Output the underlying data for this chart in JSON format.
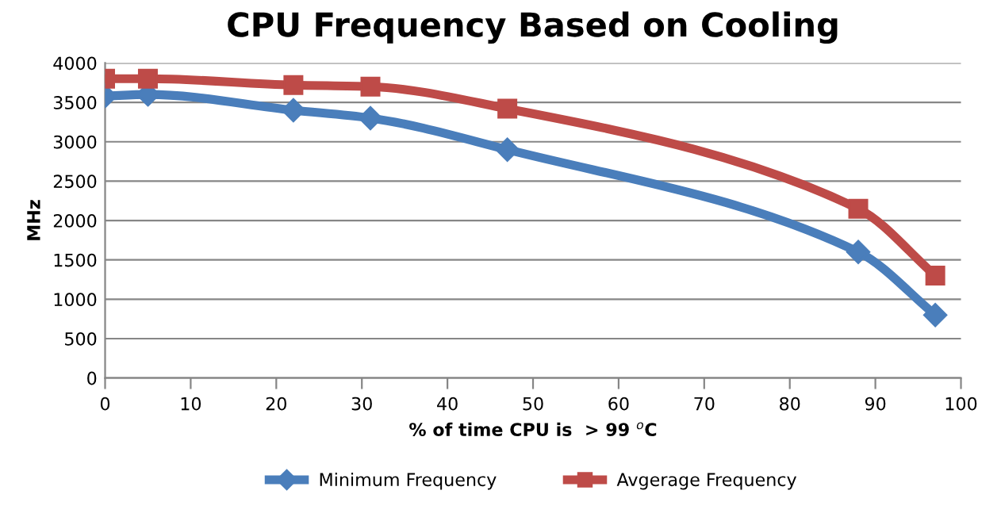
{
  "chart_data": {
    "type": "line",
    "title": "CPU Frequency Based on Cooling",
    "xlabel": "% of time CPU is  > 99 $^{o}$C",
    "ylabel": "MHz",
    "x": [
      0,
      5,
      22,
      31,
      47,
      88,
      97
    ],
    "series": [
      {
        "name": "Minimum Frequency",
        "color": "#4a7ebb",
        "marker": "diamond",
        "values": [
          3580,
          3600,
          3400,
          3300,
          2900,
          1600,
          800
        ]
      },
      {
        "name": "Avgerage Frequency",
        "color": "#be4b48",
        "marker": "square",
        "values": [
          3800,
          3800,
          3720,
          3700,
          3420,
          2150,
          1300
        ]
      }
    ],
    "xlim": [
      0,
      100
    ],
    "xticks": [
      0,
      10,
      20,
      30,
      40,
      50,
      60,
      70,
      80,
      90,
      100
    ],
    "ylim": [
      0,
      4000
    ],
    "yticks": [
      0,
      500,
      1000,
      1500,
      2000,
      2500,
      3000,
      3500,
      4000
    ],
    "grid": "y",
    "legend": "bottom",
    "line_style": "solid"
  }
}
